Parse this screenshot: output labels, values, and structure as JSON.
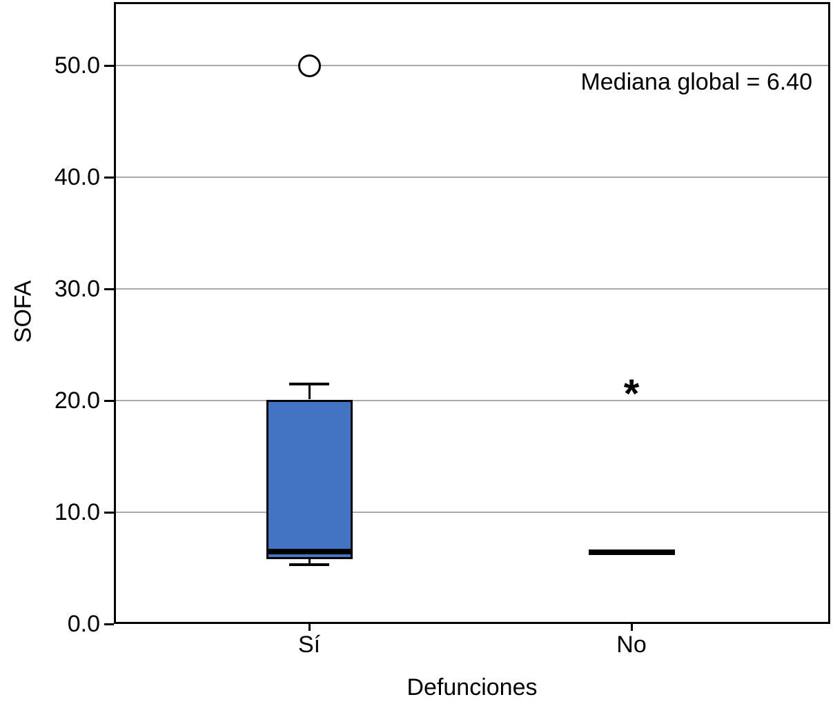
{
  "chart_data": {
    "type": "boxplot",
    "title": "",
    "xlabel": "Defunciones",
    "ylabel": "SOFA",
    "annotation": "Mediana global = 6.40",
    "global_median": 6.4,
    "categories": [
      "Sí",
      "No"
    ],
    "ylim": [
      0,
      55.7
    ],
    "yticks": [
      0,
      10,
      20,
      30,
      40,
      50
    ],
    "ytick_labels": [
      "0.0",
      "10.0",
      "20.0",
      "30.0",
      "40.0",
      "50.0"
    ],
    "grid": "horizontal-gridlines",
    "legend": "none",
    "series": [
      {
        "category": "Sí",
        "whisker_low": 5.3,
        "q1": 5.9,
        "median": 6.5,
        "q3": 20.0,
        "whisker_high": 21.5,
        "outliers": [
          {
            "value": 50.0,
            "marker": "circle",
            "type": "mild"
          }
        ]
      },
      {
        "category": "No",
        "whisker_low": 6.4,
        "q1": 6.4,
        "median": 6.4,
        "q3": 6.4,
        "whisker_high": 6.4,
        "outliers": [
          {
            "value": 21.2,
            "marker": "asterisk",
            "type": "extreme"
          }
        ]
      }
    ],
    "colors": {
      "box_fill": "#4374C4",
      "box_border": "#000000",
      "median_line": "#000000",
      "whisker": "#000000",
      "gridline": "#A9A9A9",
      "axis": "#000000",
      "outlier": "#000000",
      "background": "#FFFFFF"
    }
  }
}
